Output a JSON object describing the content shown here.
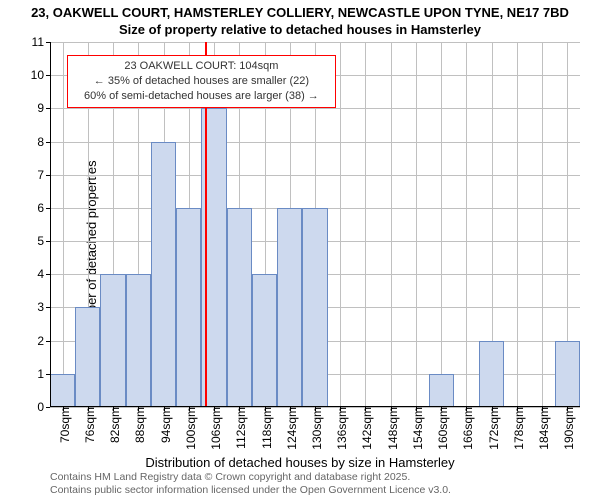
{
  "title_line1": "23, OAKWELL COURT, HAMSTERLEY COLLIERY, NEWCASTLE UPON TYNE, NE17 7BD",
  "title_line2": "Size of property relative to detached houses in Hamsterley",
  "y_axis_label": "Number of detached properties",
  "x_axis_label": "Distribution of detached houses by size in Hamsterley",
  "footer_line1": "Contains HM Land Registry data © Crown copyright and database right 2025.",
  "footer_line2": "Contains public sector information licensed under the Open Government Licence v3.0.",
  "chart": {
    "type": "histogram",
    "ylim": [
      0,
      11
    ],
    "ytick_step": 1,
    "x_categories": [
      "70sqm",
      "76sqm",
      "82sqm",
      "88sqm",
      "94sqm",
      "100sqm",
      "106sqm",
      "112sqm",
      "118sqm",
      "124sqm",
      "130sqm",
      "136sqm",
      "142sqm",
      "148sqm",
      "154sqm",
      "160sqm",
      "166sqm",
      "172sqm",
      "178sqm",
      "184sqm",
      "190sqm"
    ],
    "values": [
      1,
      3,
      4,
      4,
      8,
      6,
      9,
      6,
      4,
      6,
      6,
      0,
      0,
      0,
      0,
      1,
      0,
      2,
      0,
      0,
      2
    ],
    "bar_fill": "#cdd9ee",
    "bar_stroke": "#6a8bc4",
    "bar_stroke_width": 1,
    "xlim_inner_sqm": [
      67,
      193
    ],
    "background_color": "#ffffff",
    "grid_color": "#c0c0c0",
    "axis_color": "#000000",
    "label_fontsize": 13,
    "tick_fontsize": 12,
    "title_fontsize": 13,
    "marker": {
      "value_sqm": 104,
      "color": "#ff0000",
      "width": 2
    },
    "annotation": {
      "line1": "23 OAKWELL COURT: 104sqm",
      "line2": "← 35% of detached houses are smaller (22)",
      "line3": "60% of semi-detached houses are larger (38) →",
      "border_color": "#ff0000",
      "text_color": "#333333",
      "background_color": "#ffffff",
      "fontsize": 11,
      "left_sqm": 71,
      "width_sqm": 64,
      "y_top_value": 10.6
    }
  }
}
